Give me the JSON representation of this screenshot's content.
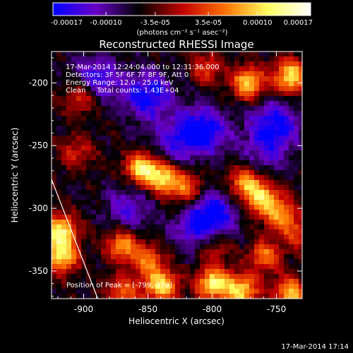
{
  "chart_data": {
    "type": "heatmap",
    "title": "Reconstructed RHESSI Image",
    "xlabel": "Heliocentric X (arcsec)",
    "ylabel": "Heliocentric Y (arcsec)",
    "xlim": [
      -925,
      -730
    ],
    "ylim": [
      -372,
      -175
    ],
    "x_ticks": [
      -900,
      -850,
      -800,
      -750
    ],
    "y_ticks": [
      -350,
      -300,
      -250,
      -200
    ],
    "x_tick_labels": [
      "-900",
      "-850",
      "-800",
      "-750"
    ],
    "y_tick_labels": [
      "-350",
      "-300",
      "-250",
      "-200"
    ],
    "colorbar": {
      "range": [
        -0.00017,
        0.00017
      ],
      "ticks": [
        -0.00017,
        -0.0001,
        -3.5e-05,
        3.5e-05,
        0.0001,
        0.00017
      ],
      "tick_labels": [
        "-0.00017",
        "-0.00010",
        "-3.5e-05",
        "3.5e-05",
        "0.00010",
        "0.00017"
      ],
      "unit_label": "(photons cm⁻² s⁻¹ asec⁻²)",
      "stops": [
        "#0000ff",
        "#6a00c8",
        "#000000",
        "#c00000",
        "#ff7000",
        "#ffff60",
        "#ffffff"
      ]
    },
    "info": [
      "17-Mar-2014 12:24:04.000 to 12:31:36.000",
      "Detectors: 3F 5F 6F 7F 8F 9F, Att 0",
      "Energy Range: 12.0 - 25.0 keV",
      "Clean     Total counts: 1.43E+04"
    ],
    "peak_label": "Position of Peak = [-799,-359]",
    "peak": [
      -799,
      -359
    ],
    "limb_line": [
      [
        -925,
        -277
      ],
      [
        -889,
        -372
      ]
    ],
    "grid": false,
    "blobs": [
      {
        "x": -773,
        "y": -200,
        "a": 0.9
      },
      {
        "x": -740,
        "y": -195,
        "a": 1.0
      },
      {
        "x": -805,
        "y": -188,
        "a": 0.45
      },
      {
        "x": -855,
        "y": -268,
        "a": 1.0
      },
      {
        "x": -838,
        "y": -276,
        "a": 0.9
      },
      {
        "x": -820,
        "y": -285,
        "a": 0.6
      },
      {
        "x": -775,
        "y": -280,
        "a": 0.75
      },
      {
        "x": -762,
        "y": -292,
        "a": 0.85
      },
      {
        "x": -748,
        "y": -305,
        "a": 0.65
      },
      {
        "x": -902,
        "y": -212,
        "a": 0.55
      },
      {
        "x": -905,
        "y": -255,
        "a": 0.4
      },
      {
        "x": -918,
        "y": -318,
        "a": 1.0
      },
      {
        "x": -918,
        "y": -338,
        "a": 1.0
      },
      {
        "x": -870,
        "y": -330,
        "a": 0.75
      },
      {
        "x": -850,
        "y": -342,
        "a": 0.6
      },
      {
        "x": -800,
        "y": -330,
        "a": 0.5
      },
      {
        "x": -760,
        "y": -338,
        "a": 0.65
      },
      {
        "x": -735,
        "y": -320,
        "a": 0.45
      },
      {
        "x": -840,
        "y": -362,
        "a": 0.95
      },
      {
        "x": -800,
        "y": -360,
        "a": 1.0
      },
      {
        "x": -778,
        "y": -366,
        "a": 0.95
      },
      {
        "x": -740,
        "y": -368,
        "a": 0.85
      },
      {
        "x": -870,
        "y": -368,
        "a": 0.6
      }
    ],
    "wells": [
      {
        "x": -890,
        "y": -197,
        "a": 0.7
      },
      {
        "x": -850,
        "y": -210,
        "a": 0.9
      },
      {
        "x": -808,
        "y": -238,
        "a": 1.0
      },
      {
        "x": -752,
        "y": -233,
        "a": 0.85
      },
      {
        "x": -832,
        "y": -248,
        "a": 0.55
      },
      {
        "x": -800,
        "y": -305,
        "a": 0.85
      },
      {
        "x": -812,
        "y": -318,
        "a": 0.6
      },
      {
        "x": -865,
        "y": -300,
        "a": 0.55
      },
      {
        "x": -760,
        "y": -255,
        "a": 0.45
      }
    ]
  },
  "footer": {
    "timestamp": "17-Mar-2014 17:14"
  }
}
